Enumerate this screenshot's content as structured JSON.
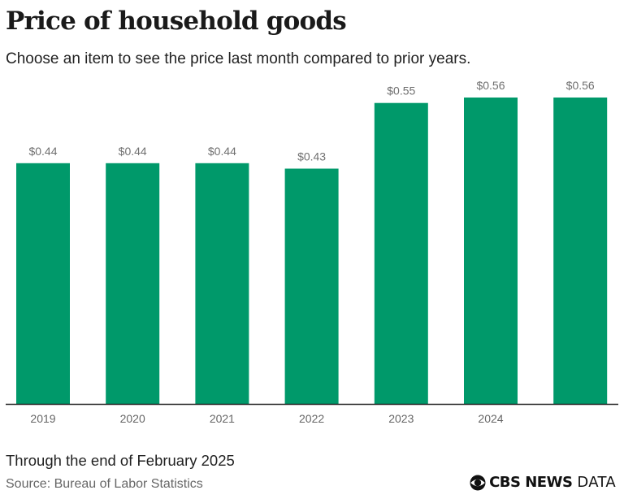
{
  "header": {
    "title": "Price of household goods",
    "subtitle": "Choose an item to see the price last month compared to prior years."
  },
  "footer": {
    "note": "Through the end of February 2025",
    "source": "Source: Bureau of Labor Statistics",
    "brand": "CBS NEWS",
    "brand_suffix": "DATA"
  },
  "colors": {
    "bar": "#00996a",
    "axis": "#222222",
    "label": "#707070"
  },
  "chart_data": {
    "type": "bar",
    "title": "Price of household goods",
    "xlabel": "",
    "ylabel": "",
    "categories": [
      "2019",
      "2020",
      "2021",
      "2022",
      "2023",
      "2024",
      ""
    ],
    "values": [
      0.44,
      0.44,
      0.44,
      0.43,
      0.55,
      0.56,
      0.56
    ],
    "data_labels": [
      "$0.44",
      "$0.44",
      "$0.44",
      "$0.43",
      "$0.55",
      "$0.56",
      "$0.56"
    ],
    "ylim": [
      0,
      0.56
    ],
    "grid": false,
    "legend": "none"
  }
}
